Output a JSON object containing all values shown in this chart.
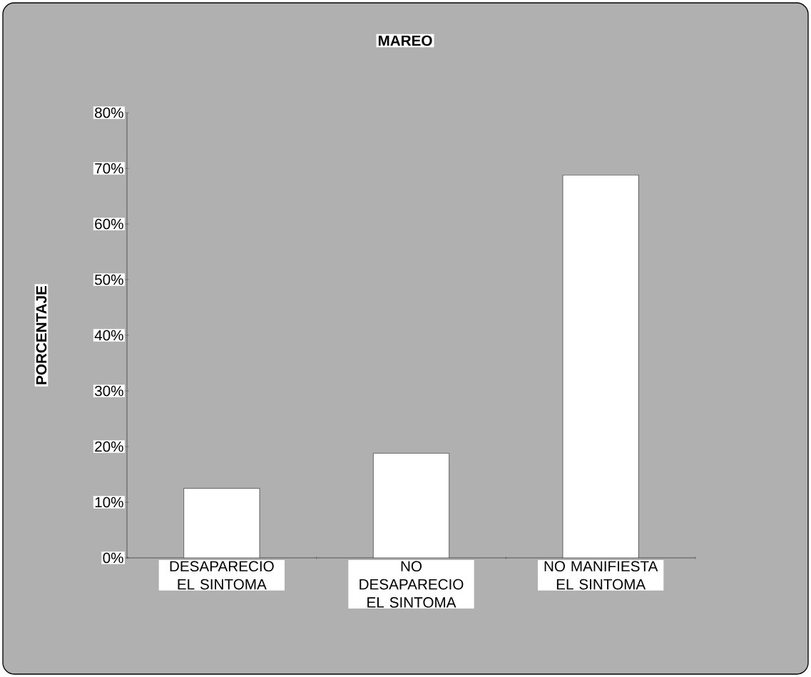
{
  "chart_data": {
    "type": "bar",
    "title": "MAREO",
    "ylabel": "PORCENTAJE",
    "categories": [
      "DESAPARECIO EL SINTOMA",
      "NO DESAPARECIO EL SINTOMA",
      "NO MANIFIESTA EL SINTOMA"
    ],
    "values": [
      12.5,
      18.8,
      68.8
    ],
    "color": "#ffffff",
    "ylim": [
      0,
      80
    ],
    "yticks": [
      {
        "value": 0,
        "label": "0%"
      },
      {
        "value": 10,
        "label": "10%"
      },
      {
        "value": 20,
        "label": "20%"
      },
      {
        "value": 30,
        "label": "30%"
      },
      {
        "value": 40,
        "label": "40%"
      },
      {
        "value": 50,
        "label": "50%"
      },
      {
        "value": 60,
        "label": "60%"
      },
      {
        "value": 70,
        "label": "70%"
      },
      {
        "value": 80,
        "label": "80%"
      }
    ]
  }
}
